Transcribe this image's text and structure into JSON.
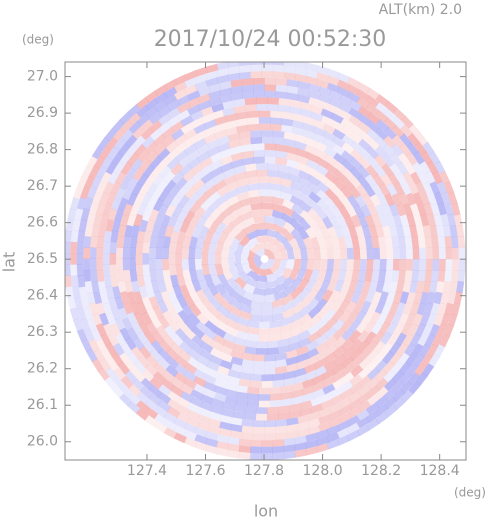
{
  "chart_data": {
    "type": "radar-field",
    "title": "2017/10/24 00:52:30",
    "annotation": "ALT(km) 2.0",
    "x_label": "lon",
    "y_label": "lat",
    "x_unit": "(deg)",
    "y_unit": "(deg)",
    "xlim": [
      127.12,
      128.49
    ],
    "ylim": [
      25.95,
      27.04
    ],
    "xticks": [
      127.4,
      127.6,
      127.8,
      {
        "value": 128,
        "label": "128.0"
      },
      128.2,
      128.4
    ],
    "yticks": [
      {
        "value": 26,
        "label": "26.0"
      },
      26.1,
      26.2,
      26.3,
      26.4,
      26.5,
      26.6,
      26.7,
      26.8,
      26.9,
      {
        "value": 27,
        "label": "27.0"
      }
    ],
    "colors": [
      "#f08c8c",
      "#8c8cf0"
    ]
  }
}
